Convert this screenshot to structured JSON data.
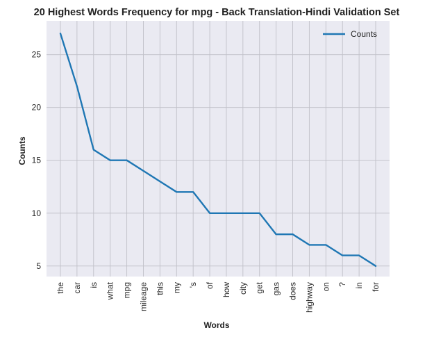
{
  "chart_data": {
    "type": "line",
    "title": "20 Highest Words Frequency for mpg - Back Translation-Hindi Validation Set",
    "xlabel": "Words",
    "ylabel": "Counts",
    "categories": [
      "the",
      "car",
      "is",
      "what",
      "mpg",
      "mileage",
      "this",
      "my",
      "'s",
      "of",
      "how",
      "city",
      "get",
      "gas",
      "does",
      "highway",
      "on",
      "?",
      "in",
      "for"
    ],
    "series": [
      {
        "name": "Counts",
        "values": [
          27,
          22,
          16,
          15,
          15,
          14,
          13,
          12,
          12,
          10,
          10,
          10,
          10,
          8,
          8,
          7,
          7,
          6,
          6,
          5
        ],
        "color": "#1f77b4"
      }
    ],
    "yticks": [
      5,
      10,
      15,
      20,
      25
    ],
    "ylim": [
      4.0,
      28.2
    ],
    "grid": true,
    "legend_position": "top-right",
    "colors": {
      "plot_background": "#eaeaf2",
      "grid": "#c0c0c8"
    }
  }
}
